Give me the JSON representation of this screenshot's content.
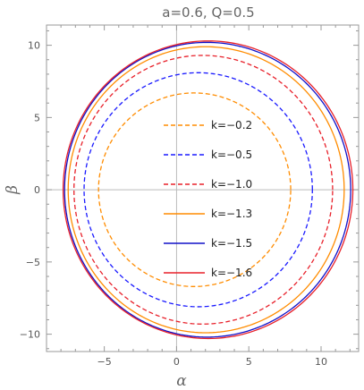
{
  "chart_data": {
    "type": "line",
    "title": "a=0.6, Q=0.5",
    "xlabel": "α",
    "ylabel": "β",
    "xlim": [
      -9,
      12.6
    ],
    "ylim": [
      -11.2,
      11.4
    ],
    "xticks": [
      -5,
      0,
      5,
      10
    ],
    "yticks": [
      -10,
      -5,
      0,
      5,
      10
    ],
    "grid": false,
    "frame_color": "#999999",
    "zero_axis_color": "#bbbbbb",
    "legend_position": "center",
    "series": [
      {
        "name": "k=−0.2",
        "color": "#ff8c00",
        "dash": true,
        "cx": 1.2,
        "left": -5.4,
        "right": 7.9,
        "top": 6.7,
        "bottom": -6.7
      },
      {
        "name": "k=−0.5",
        "color": "#1a1aff",
        "dash": true,
        "cx": 1.5,
        "left": -6.4,
        "right": 9.4,
        "top": 8.1,
        "bottom": -8.1
      },
      {
        "name": "k=−1.0",
        "color": "#e8202a",
        "dash": true,
        "cx": 1.8,
        "left": -7.1,
        "right": 10.8,
        "top": 9.3,
        "bottom": -9.3
      },
      {
        "name": "k=−1.3",
        "color": "#ff8c00",
        "dash": false,
        "cx": 2.0,
        "left": -7.5,
        "right": 11.6,
        "top": 9.9,
        "bottom": -9.9
      },
      {
        "name": "k=−1.5",
        "color": "#1010c8",
        "dash": false,
        "cx": 2.1,
        "left": -7.75,
        "right": 12.05,
        "top": 10.2,
        "bottom": -10.2
      },
      {
        "name": "k=−1.6",
        "color": "#e8202a",
        "dash": false,
        "cx": 2.2,
        "left": -7.85,
        "right": 12.2,
        "top": 10.3,
        "bottom": -10.3
      }
    ]
  }
}
